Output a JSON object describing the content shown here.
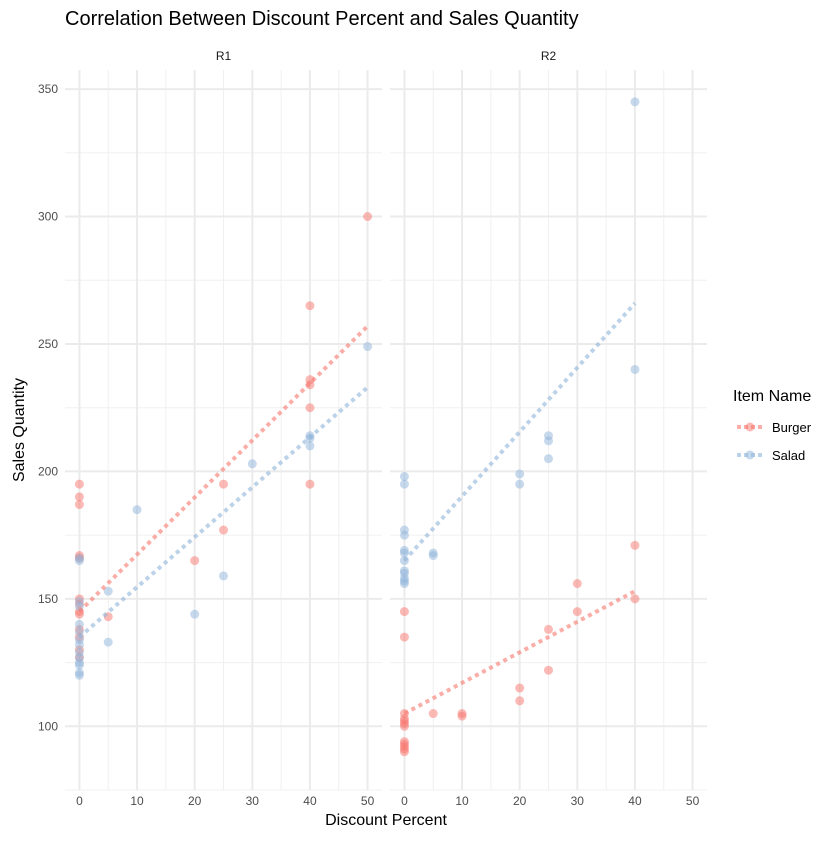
{
  "chart_data": {
    "type": "scatter",
    "title": "Correlation Between Discount Percent and Sales Quantity",
    "xlabel": "Discount Percent",
    "ylabel": "Sales Quantity",
    "xlim": [
      -2.5,
      52.5
    ],
    "ylim": [
      75,
      357.5
    ],
    "xticks": [
      0,
      10,
      20,
      30,
      40,
      50
    ],
    "yticks": [
      100,
      150,
      200,
      250,
      300,
      350
    ],
    "grid": true,
    "legend": {
      "title": "Item Name",
      "placement": "right",
      "entries": [
        "Burger",
        "Salad"
      ]
    },
    "colors": {
      "Burger": "#F8766D",
      "Salad": "#8FB4D9"
    },
    "panels": [
      {
        "label": "R1",
        "series": [
          {
            "name": "Burger",
            "points": [
              [
                0,
                195
              ],
              [
                0,
                190
              ],
              [
                0,
                187
              ],
              [
                0,
                167
              ],
              [
                0,
                166
              ],
              [
                0,
                150
              ],
              [
                0,
                148
              ],
              [
                0,
                145
              ],
              [
                0,
                144
              ],
              [
                0,
                138
              ],
              [
                0,
                135
              ],
              [
                0,
                130
              ],
              [
                0,
                127
              ],
              [
                5,
                143
              ],
              [
                20,
                165
              ],
              [
                25,
                195
              ],
              [
                25,
                177
              ],
              [
                40,
                265
              ],
              [
                40,
                236
              ],
              [
                40,
                234
              ],
              [
                40,
                225
              ],
              [
                40,
                195
              ],
              [
                50,
                300
              ]
            ],
            "fit": [
              [
                0,
                145
              ],
              [
                50,
                257
              ]
            ]
          },
          {
            "name": "Salad",
            "points": [
              [
                0,
                165
              ],
              [
                0,
                166
              ],
              [
                0,
                149
              ],
              [
                0,
                147
              ],
              [
                0,
                140
              ],
              [
                0,
                137
              ],
              [
                0,
                134
              ],
              [
                0,
                132
              ],
              [
                0,
                129
              ],
              [
                0,
                127
              ],
              [
                0,
                125
              ],
              [
                0,
                124
              ],
              [
                0,
                121
              ],
              [
                0,
                120
              ],
              [
                5,
                153
              ],
              [
                5,
                133
              ],
              [
                10,
                185
              ],
              [
                20,
                144
              ],
              [
                25,
                159
              ],
              [
                30,
                203
              ],
              [
                40,
                214
              ],
              [
                40,
                213
              ],
              [
                40,
                210
              ],
              [
                50,
                249
              ]
            ],
            "fit": [
              [
                0,
                135
              ],
              [
                50,
                233
              ]
            ]
          }
        ]
      },
      {
        "label": "R2",
        "series": [
          {
            "name": "Burger",
            "points": [
              [
                0,
                145
              ],
              [
                0,
                135
              ],
              [
                0,
                105
              ],
              [
                0,
                103
              ],
              [
                0,
                102
              ],
              [
                0,
                101
              ],
              [
                0,
                100
              ],
              [
                0,
                94
              ],
              [
                0,
                93
              ],
              [
                0,
                92
              ],
              [
                0,
                91
              ],
              [
                0,
                90
              ],
              [
                5,
                105
              ],
              [
                10,
                105
              ],
              [
                10,
                104
              ],
              [
                20,
                115
              ],
              [
                20,
                110
              ],
              [
                25,
                138
              ],
              [
                25,
                122
              ],
              [
                30,
                156
              ],
              [
                30,
                145
              ],
              [
                40,
                171
              ],
              [
                40,
                150
              ]
            ],
            "fit": [
              [
                0,
                105
              ],
              [
                40,
                153
              ]
            ]
          },
          {
            "name": "Salad",
            "points": [
              [
                0,
                198
              ],
              [
                0,
                195
              ],
              [
                0,
                177
              ],
              [
                0,
                175
              ],
              [
                0,
                169
              ],
              [
                0,
                168
              ],
              [
                0,
                165
              ],
              [
                0,
                161
              ],
              [
                0,
                160
              ],
              [
                0,
                158
              ],
              [
                0,
                157
              ],
              [
                0,
                156
              ],
              [
                5,
                168
              ],
              [
                5,
                167
              ],
              [
                20,
                199
              ],
              [
                20,
                195
              ],
              [
                25,
                214
              ],
              [
                25,
                212
              ],
              [
                25,
                205
              ],
              [
                40,
                345
              ],
              [
                40,
                240
              ]
            ],
            "fit": [
              [
                0,
                165
              ],
              [
                40,
                266
              ]
            ]
          }
        ]
      }
    ]
  }
}
